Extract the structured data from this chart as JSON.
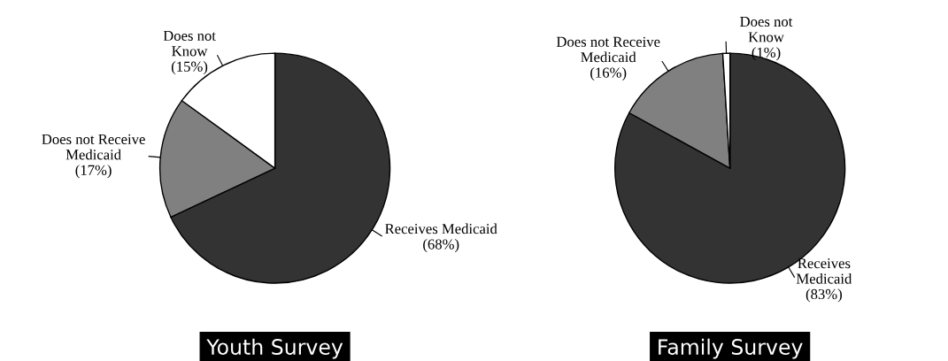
{
  "chart_data": [
    {
      "type": "pie",
      "title": "Youth Survey",
      "categories": [
        "Receives Medicaid",
        "Does not Receive\nMedicaid",
        "Does not\nKnow"
      ],
      "values": [
        68,
        17,
        15
      ],
      "colors": [
        "#333333",
        "#808080",
        "#ffffff"
      ],
      "value_labels": [
        "(68%)",
        "(17%)",
        "(15%)"
      ]
    },
    {
      "type": "pie",
      "title": "Family Survey",
      "categories": [
        "Receives\nMedicaid",
        "Does not Receive\nMedicaid",
        "Does not\nKnow"
      ],
      "values": [
        83,
        16,
        1
      ],
      "colors": [
        "#333333",
        "#808080",
        "#ffffff"
      ],
      "value_labels": [
        "(83%)",
        "(16%)",
        "(1%)"
      ]
    }
  ]
}
